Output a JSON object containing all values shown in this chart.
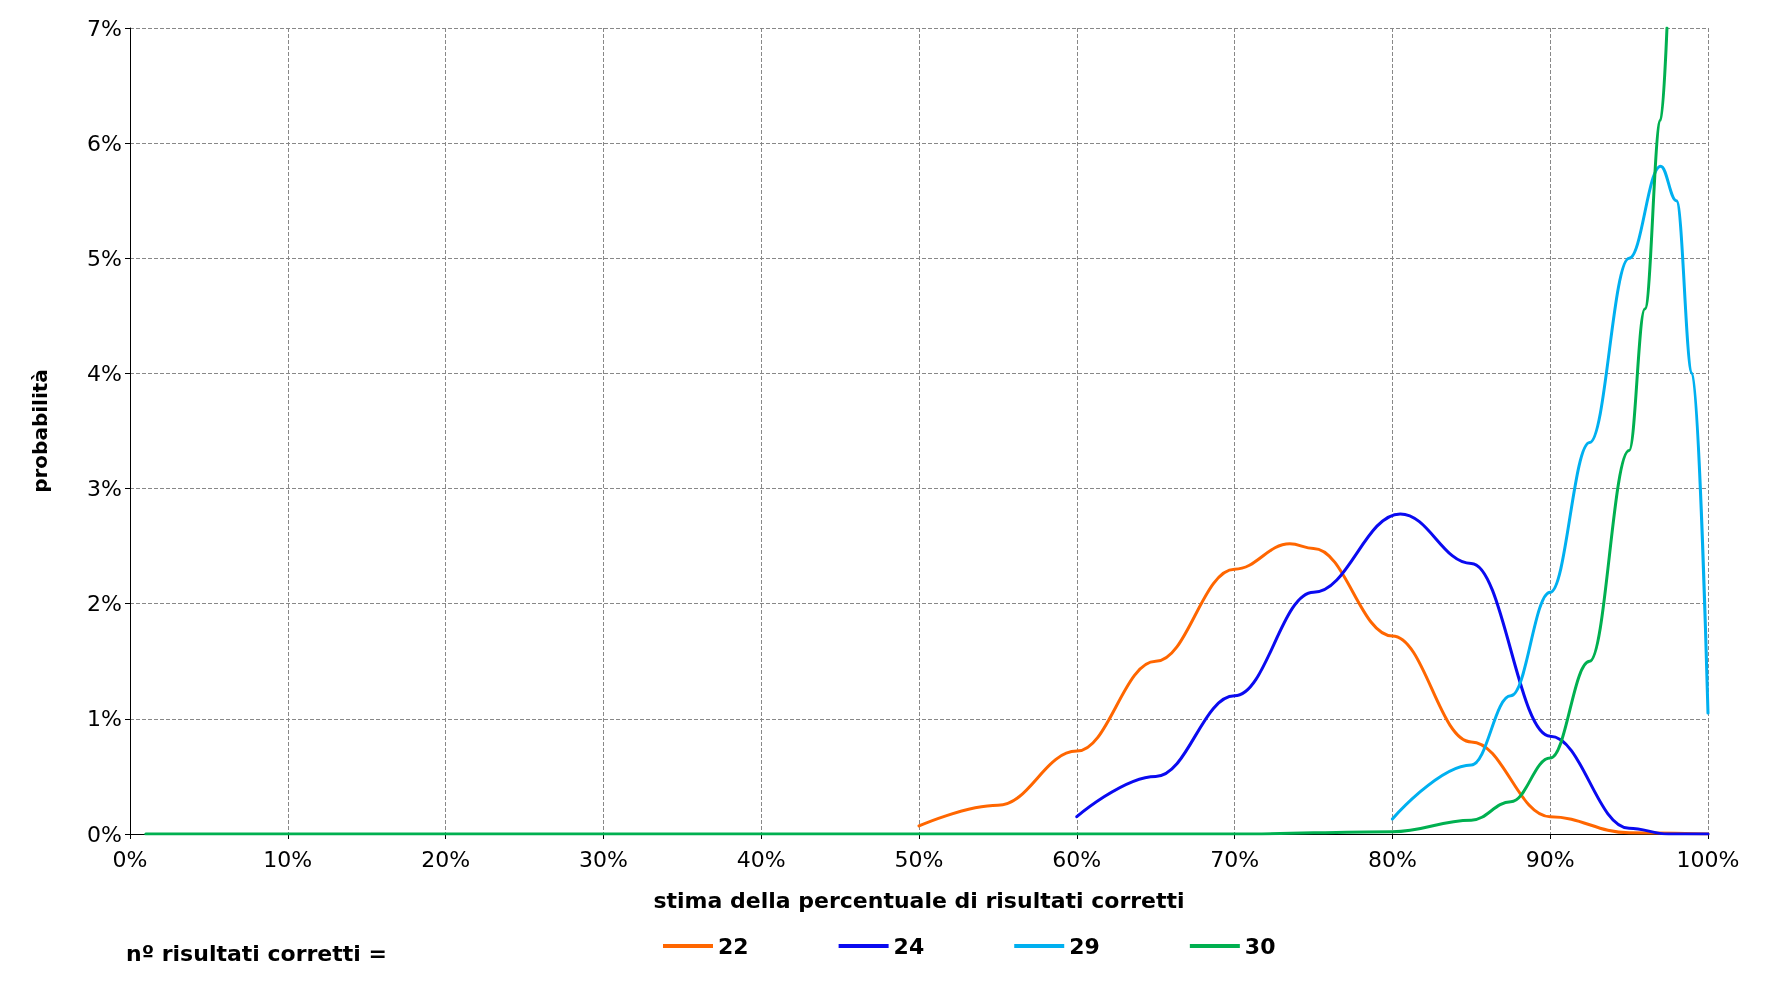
{
  "chart_data": {
    "type": "line",
    "xlabel": "stima della percentuale di risultati corretti",
    "ylabel": "probabilità",
    "legend_title": "nº risultati corretti =",
    "legend": "bottom",
    "grid": true,
    "marker": "none",
    "line_style": "solid",
    "xlim": [
      0,
      100
    ],
    "xticks": [
      {
        "value": 0,
        "label": "0%"
      },
      {
        "value": 10,
        "label": "10%"
      },
      {
        "value": 20,
        "label": "20%"
      },
      {
        "value": 30,
        "label": "30%"
      },
      {
        "value": 40,
        "label": "40%"
      },
      {
        "value": 50,
        "label": "50%"
      },
      {
        "value": 60,
        "label": "60%"
      },
      {
        "value": 70,
        "label": "70%"
      },
      {
        "value": 80,
        "label": "80%"
      },
      {
        "value": 90,
        "label": "90%"
      },
      {
        "value": 100,
        "label": "100%"
      }
    ],
    "ylim": [
      0,
      7
    ],
    "yticks": [
      {
        "value": 0,
        "label": "0%"
      },
      {
        "value": 1,
        "label": "1%"
      },
      {
        "value": 2,
        "label": "2%"
      },
      {
        "value": 3,
        "label": "3%"
      },
      {
        "value": 4,
        "label": "4%"
      },
      {
        "value": 5,
        "label": "5%"
      },
      {
        "value": 6,
        "label": "6%"
      },
      {
        "value": 7,
        "label": "7%"
      }
    ],
    "series": [
      {
        "name": "22",
        "color": "#ff6600",
        "x": [
          50,
          55,
          60,
          65,
          70,
          73.5,
          75,
          80,
          85,
          90,
          95,
          100
        ],
        "values": [
          0.07,
          0.25,
          0.72,
          1.5,
          2.3,
          2.52,
          2.48,
          1.72,
          0.8,
          0.15,
          0.01,
          0
        ]
      },
      {
        "name": "24",
        "color": "#0a0af0",
        "x": [
          60,
          65,
          70,
          75,
          80.5,
          85,
          90,
          95,
          97.5,
          100
        ],
        "values": [
          0.15,
          0.5,
          1.2,
          2.1,
          2.78,
          2.35,
          0.85,
          0.05,
          0,
          0
        ]
      },
      {
        "name": "29",
        "color": "#00b0f0",
        "x": [
          80,
          85,
          87.5,
          90,
          92.5,
          95,
          97,
          98,
          99,
          100
        ],
        "values": [
          0.13,
          0.6,
          1.2,
          2.1,
          3.4,
          5.0,
          5.8,
          5.5,
          4.0,
          1.05
        ]
      },
      {
        "name": "30",
        "color": "#00b050",
        "x": [
          1,
          30,
          60,
          70,
          80,
          85,
          87.5,
          90,
          92.5,
          95,
          96,
          97,
          97.4
        ],
        "values": [
          0,
          0,
          0,
          0,
          0.02,
          0.12,
          0.28,
          0.66,
          1.5,
          3.33,
          4.56,
          6.2,
          7.0
        ]
      }
    ]
  }
}
